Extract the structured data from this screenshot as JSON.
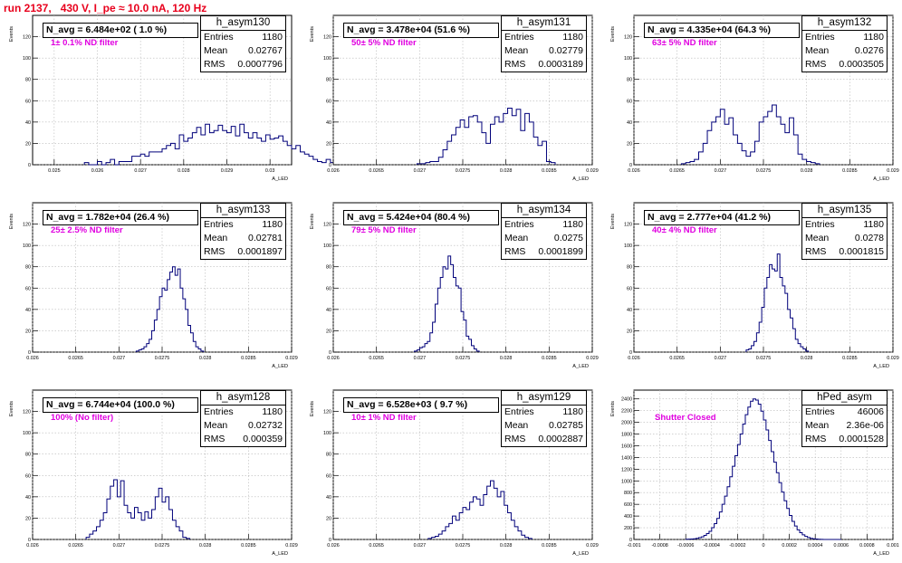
{
  "header": {
    "run_title": "run 2137,   430 V, I_pe ≈ 10.0 nA, 120 Hz"
  },
  "stat_labels": {
    "entries": "Entries",
    "mean": "Mean",
    "rms": "RMS"
  },
  "colors": {
    "title": "#e8001c",
    "histogram": "#00007a",
    "annotation": "#e000e0"
  },
  "chart_data": [
    {
      "type": "bar",
      "name": "h_asym130",
      "navg": "N_avg = 6.484e+02 ( 1.0 %)",
      "filter": "1± 0.1% ND filter",
      "stats": {
        "entries": "1180",
        "mean": "0.02767",
        "rms": "0.0007796"
      },
      "xlabel": "A_LED",
      "ylabel": "Events",
      "xlim": [
        0.0245,
        0.0305
      ],
      "ylim": [
        0,
        140
      ],
      "xticks": [
        0.025,
        0.026,
        0.027,
        0.028,
        0.029,
        0.03
      ],
      "xtick_labels": [
        "0.025",
        "0.026",
        "0.027",
        "0.028",
        "0.029",
        "0.03"
      ],
      "yticks": [
        0,
        20,
        40,
        60,
        80,
        100,
        120
      ],
      "bins": {
        "start": 0.0257,
        "width": 0.0001,
        "counts": [
          2,
          0,
          0,
          3,
          0,
          2,
          5,
          0,
          3,
          3,
          3,
          8,
          8,
          10,
          8,
          12,
          12,
          12,
          15,
          18,
          20,
          15,
          28,
          22,
          25,
          30,
          35,
          28,
          38,
          30,
          32,
          37,
          32,
          30,
          36,
          27,
          38,
          30,
          25,
          30,
          25,
          22,
          28,
          24,
          25,
          27,
          22,
          18,
          15,
          18,
          12,
          10,
          8,
          5,
          3,
          2,
          5,
          2,
          0,
          2
        ]
      }
    },
    {
      "type": "bar",
      "name": "h_asym131",
      "navg": "N_avg = 3.478e+04 (51.6 %)",
      "filter": "50± 5% ND filter",
      "stats": {
        "entries": "1180",
        "mean": "0.02779",
        "rms": "0.0003189"
      },
      "xlabel": "A_LED",
      "ylabel": "Events",
      "xlim": [
        0.026,
        0.029
      ],
      "ylim": [
        0,
        140
      ],
      "xticks": [
        0.026,
        0.0265,
        0.027,
        0.0275,
        0.028,
        0.0285,
        0.029
      ],
      "xtick_labels": [
        "0.026",
        "0.0265",
        "0.027",
        "0.0275",
        "0.028",
        "0.0285",
        "0.029"
      ],
      "yticks": [
        0,
        20,
        40,
        60,
        80,
        100,
        120
      ],
      "bins": {
        "start": 0.02697,
        "width": 5e-05,
        "counts": [
          1,
          1,
          2,
          3,
          3,
          7,
          14,
          22,
          28,
          35,
          42,
          35,
          45,
          46,
          40,
          30,
          20,
          38,
          45,
          40,
          48,
          53,
          46,
          52,
          32,
          48,
          40,
          26,
          18,
          22,
          3,
          2
        ]
      }
    },
    {
      "type": "bar",
      "name": "h_asym132",
      "navg": "N_avg = 4.335e+04 (64.3 %)",
      "filter": "63± 5% ND filter",
      "stats": {
        "entries": "1180",
        "mean": "0.0276",
        "rms": "0.0003505"
      },
      "xlabel": "A_LED",
      "ylabel": "Events",
      "xlim": [
        0.026,
        0.029
      ],
      "ylim": [
        0,
        140
      ],
      "xticks": [
        0.026,
        0.0265,
        0.027,
        0.0275,
        0.028,
        0.0285,
        0.029
      ],
      "xtick_labels": [
        "0.026",
        "0.0265",
        "0.027",
        "0.0275",
        "0.028",
        "0.0285",
        "0.029"
      ],
      "yticks": [
        0,
        20,
        40,
        60,
        80,
        100,
        120
      ],
      "bins": {
        "start": 0.02655,
        "width": 5e-05,
        "counts": [
          1,
          2,
          3,
          5,
          12,
          20,
          32,
          40,
          45,
          52,
          38,
          44,
          28,
          20,
          13,
          8,
          12,
          22,
          40,
          45,
          50,
          56,
          45,
          38,
          30,
          44,
          28,
          10,
          5,
          3,
          2,
          1
        ]
      }
    },
    {
      "type": "bar",
      "name": "h_asym133",
      "navg": "N_avg = 1.782e+04 (26.4 %)",
      "filter": "25± 2.5% ND filter",
      "stats": {
        "entries": "1180",
        "mean": "0.02781",
        "rms": "0.0001897"
      },
      "xlabel": "A_LED",
      "ylabel": "Events",
      "xlim": [
        0.026,
        0.029
      ],
      "ylim": [
        0,
        140
      ],
      "xticks": [
        0.026,
        0.0265,
        0.027,
        0.0275,
        0.028,
        0.0285,
        0.029
      ],
      "xtick_labels": [
        "0.026",
        "0.0265",
        "0.027",
        "0.0275",
        "0.028",
        "0.0285",
        "0.029"
      ],
      "yticks": [
        0,
        20,
        40,
        60,
        80,
        100,
        120
      ],
      "bins": {
        "start": 0.0272,
        "width": 3e-05,
        "counts": [
          1,
          2,
          3,
          5,
          8,
          12,
          20,
          30,
          40,
          52,
          60,
          58,
          68,
          75,
          80,
          72,
          78,
          60,
          50,
          40,
          25,
          18,
          10,
          5,
          3,
          1
        ]
      }
    },
    {
      "type": "bar",
      "name": "h_asym134",
      "navg": "N_avg = 5.424e+04 (80.4 %)",
      "filter": "79± 5% ND filter",
      "stats": {
        "entries": "1180",
        "mean": "0.0275",
        "rms": "0.0001899"
      },
      "xlabel": "A_LED",
      "ylabel": "Events",
      "xlim": [
        0.026,
        0.029
      ],
      "ylim": [
        0,
        140
      ],
      "xticks": [
        0.026,
        0.0265,
        0.027,
        0.0275,
        0.028,
        0.0285,
        0.029
      ],
      "xtick_labels": [
        "0.026",
        "0.0265",
        "0.027",
        "0.0275",
        "0.028",
        "0.0285",
        "0.029"
      ],
      "yticks": [
        0,
        20,
        40,
        60,
        80,
        100,
        120
      ],
      "bins": {
        "start": 0.02694,
        "width": 3e-05,
        "counts": [
          1,
          2,
          4,
          5,
          8,
          10,
          18,
          28,
          45,
          60,
          70,
          80,
          78,
          90,
          82,
          70,
          62,
          60,
          38,
          30,
          15,
          12,
          6,
          3,
          1
        ]
      }
    },
    {
      "type": "bar",
      "name": "h_asym135",
      "navg": "N_avg = 2.777e+04 (41.2 %)",
      "filter": "40± 4% ND filter",
      "stats": {
        "entries": "1180",
        "mean": "0.0278",
        "rms": "0.0001815"
      },
      "xlabel": "A_LED",
      "ylabel": "Events",
      "xlim": [
        0.026,
        0.029
      ],
      "ylim": [
        0,
        140
      ],
      "xticks": [
        0.026,
        0.0265,
        0.027,
        0.0275,
        0.028,
        0.0285,
        0.029
      ],
      "xtick_labels": [
        "0.026",
        "0.0265",
        "0.027",
        "0.0275",
        "0.028",
        "0.0285",
        "0.029"
      ],
      "yticks": [
        0,
        20,
        40,
        60,
        80,
        100,
        120
      ],
      "bins": {
        "start": 0.0273,
        "width": 3e-05,
        "counts": [
          2,
          3,
          6,
          10,
          18,
          28,
          42,
          60,
          70,
          82,
          78,
          76,
          92,
          70,
          62,
          55,
          40,
          32,
          22,
          12,
          8,
          5,
          3,
          1
        ]
      }
    },
    {
      "type": "bar",
      "name": "h_asym128",
      "navg": "N_avg = 6.744e+04 (100.0 %)",
      "filter": "100% (No filter)",
      "stats": {
        "entries": "1180",
        "mean": "0.02732",
        "rms": "0.000359"
      },
      "xlabel": "A_LED",
      "ylabel": "Events",
      "xlim": [
        0.026,
        0.029
      ],
      "ylim": [
        0,
        140
      ],
      "xticks": [
        0.026,
        0.0265,
        0.027,
        0.0275,
        0.028,
        0.0285,
        0.029
      ],
      "xtick_labels": [
        "0.026",
        "0.0265",
        "0.027",
        "0.0275",
        "0.028",
        "0.0285",
        "0.029"
      ],
      "yticks": [
        0,
        20,
        40,
        60,
        80,
        100,
        120
      ],
      "bins": {
        "start": 0.02662,
        "width": 4e-05,
        "counts": [
          2,
          5,
          8,
          12,
          18,
          25,
          38,
          50,
          56,
          40,
          55,
          32,
          25,
          20,
          30,
          25,
          18,
          26,
          20,
          28,
          40,
          48,
          35,
          40,
          28,
          18,
          12,
          8,
          2,
          1
        ]
      }
    },
    {
      "type": "bar",
      "name": "h_asym129",
      "navg": "N_avg = 6.528e+03 ( 9.7 %)",
      "filter": "10± 1% ND filter",
      "stats": {
        "entries": "1180",
        "mean": "0.02785",
        "rms": "0.0002887"
      },
      "xlabel": "A_LED",
      "ylabel": "Events",
      "xlim": [
        0.026,
        0.029
      ],
      "ylim": [
        0,
        140
      ],
      "xticks": [
        0.026,
        0.0265,
        0.027,
        0.0275,
        0.028,
        0.0285,
        0.029
      ],
      "xtick_labels": [
        "0.026",
        "0.0265",
        "0.027",
        "0.0275",
        "0.028",
        "0.0285",
        "0.029"
      ],
      "yticks": [
        0,
        20,
        40,
        60,
        80,
        100,
        120
      ],
      "bins": {
        "start": 0.0271,
        "width": 4e-05,
        "counts": [
          1,
          2,
          3,
          5,
          8,
          12,
          15,
          22,
          18,
          25,
          30,
          28,
          35,
          40,
          38,
          32,
          42,
          50,
          55,
          48,
          40,
          45,
          32,
          25,
          18,
          12,
          8,
          4,
          2,
          1
        ]
      }
    },
    {
      "type": "bar",
      "name": "hPed_asym",
      "navg": "",
      "filter": "Shutter Closed",
      "stats": {
        "entries": "46006",
        "mean": "2.36e-06",
        "rms": "0.0001528"
      },
      "xlabel": "A_LED",
      "ylabel": "Events",
      "xlim": [
        -0.001,
        0.001
      ],
      "ylim": [
        0,
        2550
      ],
      "xticks": [
        -0.001,
        -0.0008,
        -0.0006,
        -0.0004,
        -0.0002,
        0,
        0.0002,
        0.0004,
        0.0006,
        0.0008,
        0.001
      ],
      "xtick_labels": [
        "-0.001",
        "-0.0008",
        "-0.0006",
        "-0.0004",
        "-0.0002",
        "0",
        "0.0002",
        "0.0004",
        "0.0006",
        "0.0008",
        "0.001"
      ],
      "yticks": [
        0,
        200,
        400,
        600,
        800,
        1000,
        1200,
        1400,
        1600,
        1800,
        2000,
        2200,
        2400
      ],
      "bins": {
        "start": -0.0006,
        "width": 2e-05,
        "counts": [
          3,
          5,
          8,
          12,
          20,
          30,
          45,
          70,
          100,
          140,
          200,
          270,
          360,
          470,
          600,
          740,
          900,
          1070,
          1250,
          1430,
          1620,
          1800,
          1970,
          2130,
          2260,
          2360,
          2400,
          2380,
          2310,
          2190,
          2040,
          1870,
          1690,
          1500,
          1320,
          1140,
          970,
          810,
          660,
          530,
          410,
          310,
          230,
          165,
          115,
          80,
          52,
          33,
          20,
          12,
          7,
          4,
          2,
          1,
          0,
          0,
          0,
          0,
          0,
          0
        ]
      }
    }
  ]
}
